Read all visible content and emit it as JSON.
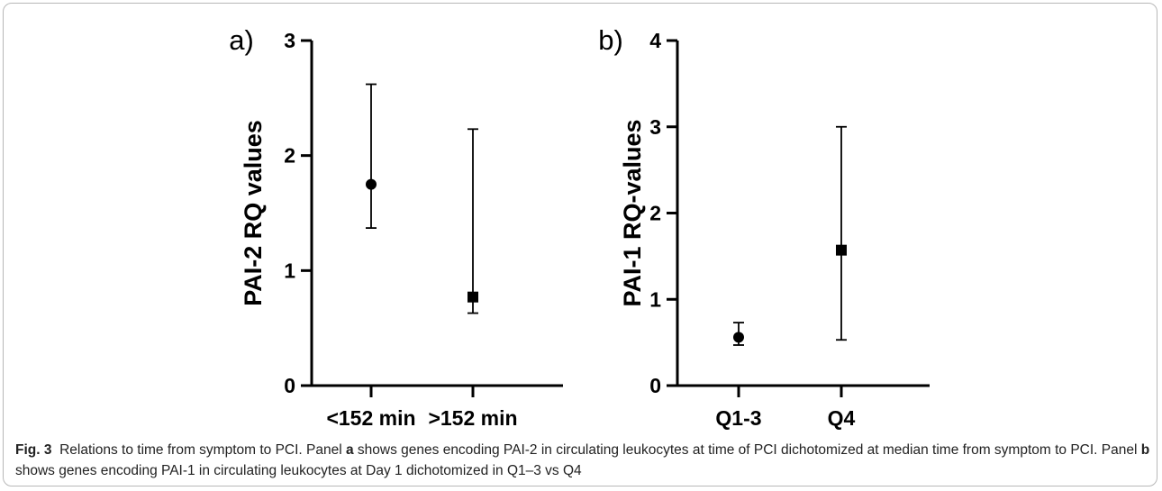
{
  "chart_data": [
    {
      "type": "scatter",
      "panel_label": "a)",
      "ylabel": "PAI-2 RQ values",
      "ylim": [
        0,
        3
      ],
      "yticks": [
        0,
        1,
        2,
        3
      ],
      "categories": [
        "<152 min",
        ">152 min"
      ],
      "points": [
        {
          "category": "<152 min",
          "value": 1.75,
          "lower": 1.37,
          "upper": 2.62,
          "marker": "circle"
        },
        {
          "category": ">152 min",
          "value": 0.77,
          "lower": 0.63,
          "upper": 2.23,
          "marker": "square"
        }
      ],
      "grid": false,
      "legend": "none"
    },
    {
      "type": "scatter",
      "panel_label": "b)",
      "ylabel": "PAI-1 RQ-values",
      "ylim": [
        0,
        4
      ],
      "yticks": [
        0,
        1,
        2,
        3,
        4
      ],
      "categories": [
        "Q1-3",
        "Q4"
      ],
      "points": [
        {
          "category": "Q1-3",
          "value": 0.56,
          "lower": 0.47,
          "upper": 0.73,
          "marker": "circle"
        },
        {
          "category": "Q4",
          "value": 1.57,
          "lower": 0.53,
          "upper": 3.0,
          "marker": "square"
        }
      ],
      "grid": false,
      "legend": "none"
    }
  ],
  "caption": {
    "fig_label": "Fig. 3",
    "part1": "Relations to time from symptom to PCI. Panel ",
    "bold_a": "a",
    "part2": " shows genes encoding PAI-2 in circulating leukocytes at time of PCI dichotomized at median time from symptom to PCI. Panel ",
    "bold_b": "b",
    "part3": " shows genes encoding PAI-1 in circulating leukocytes at Day 1 dichotomized in Q1–3 vs Q4"
  },
  "colors": {
    "ink": "#000000",
    "frame": "#b8b8b8",
    "caption_text": "#222222"
  }
}
